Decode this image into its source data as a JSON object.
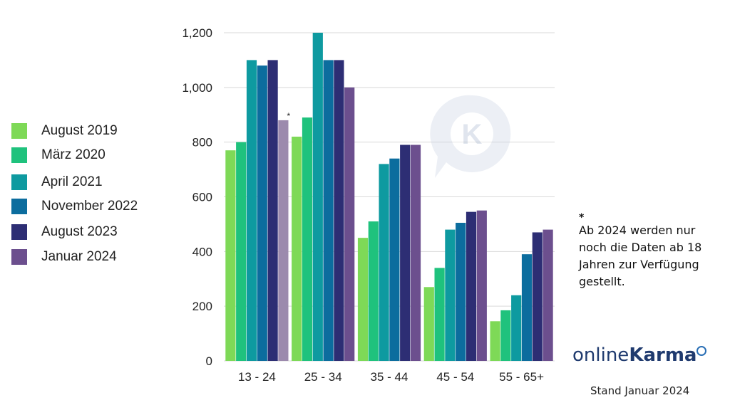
{
  "chart_data": {
    "type": "bar",
    "categories": [
      "13 - 24",
      "25 - 34",
      "35 - 44",
      "45 - 54",
      "55 - 65+"
    ],
    "series": [
      {
        "name": "August 2019",
        "color": "#7ed957",
        "values": [
          770,
          820,
          450,
          270,
          145
        ]
      },
      {
        "name": "März 2020",
        "color": "#1fc27d",
        "values": [
          800,
          890,
          510,
          340,
          185
        ]
      },
      {
        "name": "April 2021",
        "color": "#0e9aa0",
        "values": [
          1100,
          1200,
          720,
          480,
          240
        ]
      },
      {
        "name": "November 2022",
        "color": "#0c6d9e",
        "values": [
          1080,
          1100,
          740,
          505,
          390
        ]
      },
      {
        "name": "August 2023",
        "color": "#2d2e74",
        "values": [
          1100,
          1100,
          790,
          545,
          470
        ]
      },
      {
        "name": "Januar 2024",
        "color": "#6c4f8e",
        "values": [
          880,
          1000,
          790,
          550,
          480
        ]
      }
    ],
    "highlight": {
      "series": 5,
      "category": 0,
      "color": "#9c8aad",
      "marker": "*"
    },
    "ylim": [
      0,
      1200
    ],
    "yticks": [
      "0",
      "200",
      "400",
      "600",
      "800",
      "1,000",
      "1,200"
    ],
    "grid": true,
    "legend_position": "left"
  },
  "footnote": {
    "marker": "*",
    "text": "Ab 2024 werden nur noch die Daten ab 18 Jahren zur Verfügung gestellt."
  },
  "brand": {
    "part1": "online",
    "part2": "Karma"
  },
  "stand": "Stand Januar 2024",
  "watermark_icon": "chat-bubble-k-icon"
}
